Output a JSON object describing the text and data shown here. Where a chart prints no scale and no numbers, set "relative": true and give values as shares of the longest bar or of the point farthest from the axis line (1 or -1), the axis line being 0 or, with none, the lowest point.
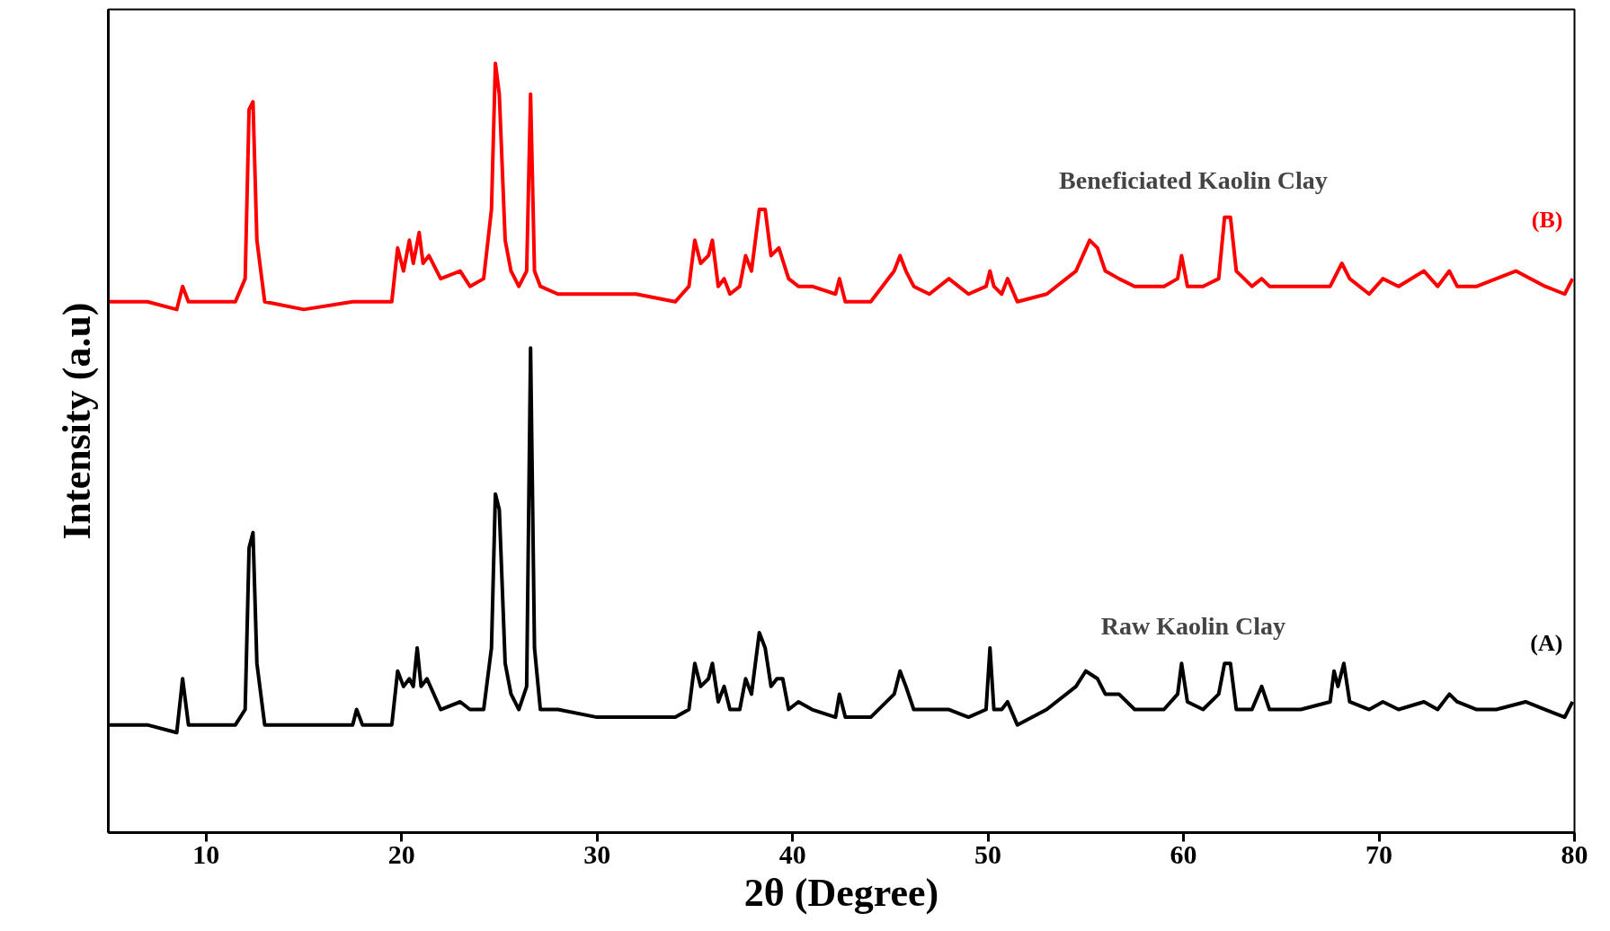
{
  "chart_data": {
    "type": "line",
    "relative": true,
    "xlabel": "2θ (Degree)",
    "ylabel": "Intensity (a.u)",
    "xlim": [
      5,
      80
    ],
    "xticks": [
      10,
      20,
      30,
      40,
      50,
      60,
      70,
      80
    ],
    "grid": false,
    "marker": "none",
    "line_style": "solid",
    "annotations": [
      "Raw Kaolin Clay",
      "Beneficiated Kaolin Clay"
    ],
    "x": [
      5,
      7,
      8.5,
      8.8,
      9.1,
      11.5,
      12.0,
      12.2,
      12.4,
      12.6,
      13,
      15,
      17.5,
      17.7,
      18,
      19.5,
      19.8,
      20.1,
      20.4,
      20.6,
      20.8,
      21.0,
      21.3,
      22,
      23,
      23.5,
      24.2,
      24.6,
      24.8,
      25.0,
      25.3,
      25.6,
      26.0,
      26.4,
      26.6,
      26.8,
      27.1,
      28,
      30,
      32,
      34,
      34.7,
      35.0,
      35.3,
      35.7,
      35.9,
      36.2,
      36.5,
      36.8,
      37.3,
      37.6,
      37.9,
      38.3,
      38.6,
      38.9,
      39.2,
      39.5,
      39.8,
      40.3,
      41,
      42.2,
      42.4,
      42.7,
      44,
      45.2,
      45.5,
      45.8,
      46.2,
      47,
      48,
      49,
      49.9,
      50.1,
      50.3,
      50.7,
      51,
      51.5,
      53,
      54.5,
      55,
      55.6,
      56,
      56.7,
      57.5,
      59,
      59.7,
      59.9,
      60.2,
      61,
      61.8,
      62.1,
      62.4,
      62.7,
      63.5,
      64,
      64.4,
      66,
      67.5,
      67.7,
      67.9,
      68.2,
      68.5,
      69.5,
      70.2,
      71,
      72.3,
      73,
      73.6,
      74,
      75,
      76,
      77.5,
      78.5,
      79.5,
      79.9
    ],
    "series": [
      {
        "name": "(A)",
        "color": "#000000",
        "values": [
          0.14,
          0.14,
          0.13,
          0.2,
          0.14,
          0.14,
          0.16,
          0.37,
          0.39,
          0.22,
          0.14,
          0.14,
          0.14,
          0.16,
          0.14,
          0.14,
          0.21,
          0.19,
          0.2,
          0.19,
          0.24,
          0.19,
          0.2,
          0.16,
          0.17,
          0.16,
          0.16,
          0.24,
          0.44,
          0.42,
          0.22,
          0.18,
          0.16,
          0.19,
          0.63,
          0.24,
          0.16,
          0.16,
          0.15,
          0.15,
          0.15,
          0.16,
          0.22,
          0.19,
          0.2,
          0.22,
          0.17,
          0.19,
          0.16,
          0.16,
          0.2,
          0.18,
          0.26,
          0.24,
          0.19,
          0.2,
          0.2,
          0.16,
          0.17,
          0.16,
          0.15,
          0.18,
          0.15,
          0.15,
          0.18,
          0.21,
          0.19,
          0.16,
          0.16,
          0.16,
          0.15,
          0.16,
          0.24,
          0.16,
          0.16,
          0.17,
          0.14,
          0.16,
          0.19,
          0.21,
          0.2,
          0.18,
          0.18,
          0.16,
          0.16,
          0.18,
          0.22,
          0.17,
          0.16,
          0.18,
          0.22,
          0.22,
          0.16,
          0.16,
          0.19,
          0.16,
          0.16,
          0.17,
          0.21,
          0.19,
          0.22,
          0.17,
          0.16,
          0.17,
          0.16,
          0.17,
          0.16,
          0.18,
          0.17,
          0.16,
          0.16,
          0.17,
          0.16,
          0.15,
          0.17
        ]
      },
      {
        "name": "(B)",
        "color": "#ff0000",
        "x": [
          5,
          7,
          8.5,
          8.8,
          9.1,
          11.5,
          12.0,
          12.2,
          12.4,
          12.6,
          13,
          15,
          17.5,
          17.7,
          18,
          19.5,
          19.8,
          20.1,
          20.4,
          20.6,
          20.9,
          21.1,
          21.4,
          22,
          23,
          23.5,
          24.2,
          24.6,
          24.8,
          25.0,
          25.3,
          25.6,
          26.0,
          26.4,
          26.6,
          26.8,
          27.1,
          28,
          30,
          32,
          34,
          34.7,
          35.0,
          35.3,
          35.7,
          35.9,
          36.2,
          36.5,
          36.8,
          37.3,
          37.6,
          37.9,
          38.3,
          38.6,
          38.9,
          39.3,
          39.8,
          40.3,
          41,
          42.2,
          42.4,
          42.7,
          44,
          45.2,
          45.5,
          45.8,
          46.2,
          47,
          48,
          49,
          49.9,
          50.1,
          50.3,
          50.7,
          51,
          51.5,
          53,
          54.5,
          55.2,
          55.6,
          56,
          56.7,
          57.5,
          59,
          59.7,
          59.9,
          60.2,
          61,
          61.8,
          62.1,
          62.4,
          62.7,
          63.5,
          64,
          64.4,
          66,
          67.5,
          67.7,
          68.1,
          68.5,
          69.5,
          70.2,
          71,
          72.3,
          73,
          73.6,
          74,
          75,
          76,
          77,
          78.5,
          79.5,
          79.9
        ],
        "values": [
          0.69,
          0.69,
          0.68,
          0.71,
          0.69,
          0.69,
          0.72,
          0.94,
          0.95,
          0.77,
          0.69,
          0.68,
          0.69,
          0.69,
          0.69,
          0.69,
          0.76,
          0.73,
          0.77,
          0.74,
          0.78,
          0.74,
          0.75,
          0.72,
          0.73,
          0.71,
          0.72,
          0.81,
          1.0,
          0.96,
          0.77,
          0.73,
          0.71,
          0.73,
          0.96,
          0.73,
          0.71,
          0.7,
          0.7,
          0.7,
          0.69,
          0.71,
          0.77,
          0.74,
          0.75,
          0.77,
          0.71,
          0.72,
          0.7,
          0.71,
          0.75,
          0.73,
          0.81,
          0.81,
          0.75,
          0.76,
          0.72,
          0.71,
          0.71,
          0.7,
          0.72,
          0.69,
          0.69,
          0.73,
          0.75,
          0.73,
          0.71,
          0.7,
          0.72,
          0.7,
          0.71,
          0.73,
          0.71,
          0.7,
          0.72,
          0.69,
          0.7,
          0.73,
          0.77,
          0.76,
          0.73,
          0.72,
          0.71,
          0.71,
          0.72,
          0.75,
          0.71,
          0.71,
          0.72,
          0.8,
          0.8,
          0.73,
          0.71,
          0.72,
          0.71,
          0.71,
          0.71,
          0.72,
          0.74,
          0.72,
          0.7,
          0.72,
          0.71,
          0.73,
          0.71,
          0.73,
          0.71,
          0.71,
          0.72,
          0.73,
          0.71,
          0.7,
          0.72
        ]
      }
    ]
  }
}
